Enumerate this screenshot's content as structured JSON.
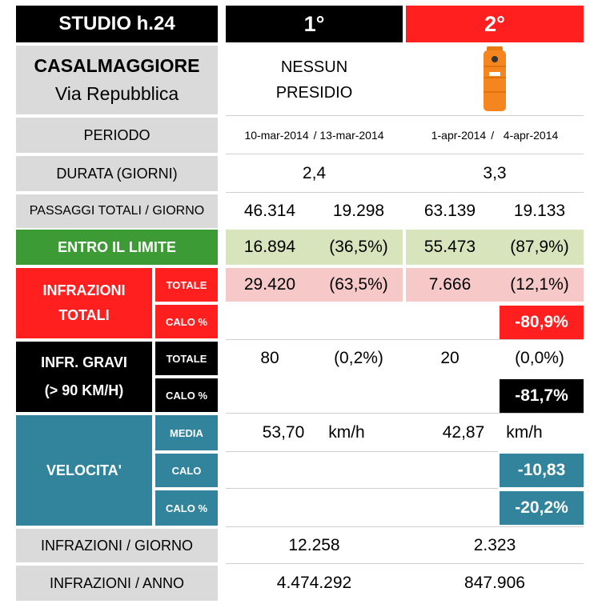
{
  "header": {
    "study": "STUDIO h.24",
    "col1": "1°",
    "col2": "2°"
  },
  "location": {
    "city": "CASALMAGGIORE",
    "street": "Via Repubblica"
  },
  "col1_device_line1": "NESSUN",
  "col1_device_line2": "PRESIDIO",
  "col2_device_icon": "orange-speed-box-icon",
  "rows": {
    "periodo": {
      "label": "PERIODO",
      "c1_start": "10-mar-2014",
      "c1_end": "/ 13-mar-2014",
      "c2_start": "1-apr-2014",
      "c2_end": "/   4-apr-2014"
    },
    "durata": {
      "label": "DURATA (GIORNI)",
      "c1": "2,4",
      "c2": "3,3"
    },
    "passaggi": {
      "label": "PASSAGGI TOTALI / GIORNO",
      "c1_a": "46.314",
      "c1_b": "19.298",
      "c2_a": "63.139",
      "c2_b": "19.133"
    },
    "entro": {
      "label": "ENTRO IL LIMITE",
      "c1_a": "16.894",
      "c1_b": "(36,5%)",
      "c2_a": "55.473",
      "c2_b": "(87,9%)"
    },
    "infrazioni": {
      "label_line1": "INFRAZIONI",
      "label_line2": "TOTALI",
      "sub_totale": "TOTALE",
      "sub_calo": "CALO %",
      "c1_a": "29.420",
      "c1_b": "(63,5%)",
      "c2_a": "7.666",
      "c2_b": "(12,1%)",
      "c2_calo": "-80,9%"
    },
    "gravi": {
      "label_line1": "INFR. GRAVI",
      "label_line2": "(> 90 KM/H)",
      "sub_totale": "TOTALE",
      "sub_calo": "CALO %",
      "c1_a": "80",
      "c1_b": "(0,2%)",
      "c2_a": "20",
      "c2_b": "(0,0%)",
      "c2_calo": "-81,7%"
    },
    "velocita": {
      "label": "VELOCITA'",
      "sub_media": "MEDIA",
      "sub_calo": "CALO",
      "sub_calo_pct": "CALO %",
      "c1_value": "53,70",
      "c1_unit": "km/h",
      "c2_value": "42,87",
      "c2_unit": "km/h",
      "c2_calo": "-10,83",
      "c2_calo_pct": "-20,2%"
    },
    "inf_giorno": {
      "label": "INFRAZIONI / GIORNO",
      "c1": "12.258",
      "c2": "2.323"
    },
    "inf_anno": {
      "label": "INFRAZIONI / ANNO",
      "c1": "4.474.292",
      "c2": "847.906"
    }
  },
  "colors": {
    "red": "#ff1f1f",
    "green": "#3d9b35",
    "teal": "#31849b",
    "light_green": "#d8e4bc",
    "light_pink": "#f6c8c8",
    "gray": "#dadada",
    "device_orange": "#f5861f"
  }
}
